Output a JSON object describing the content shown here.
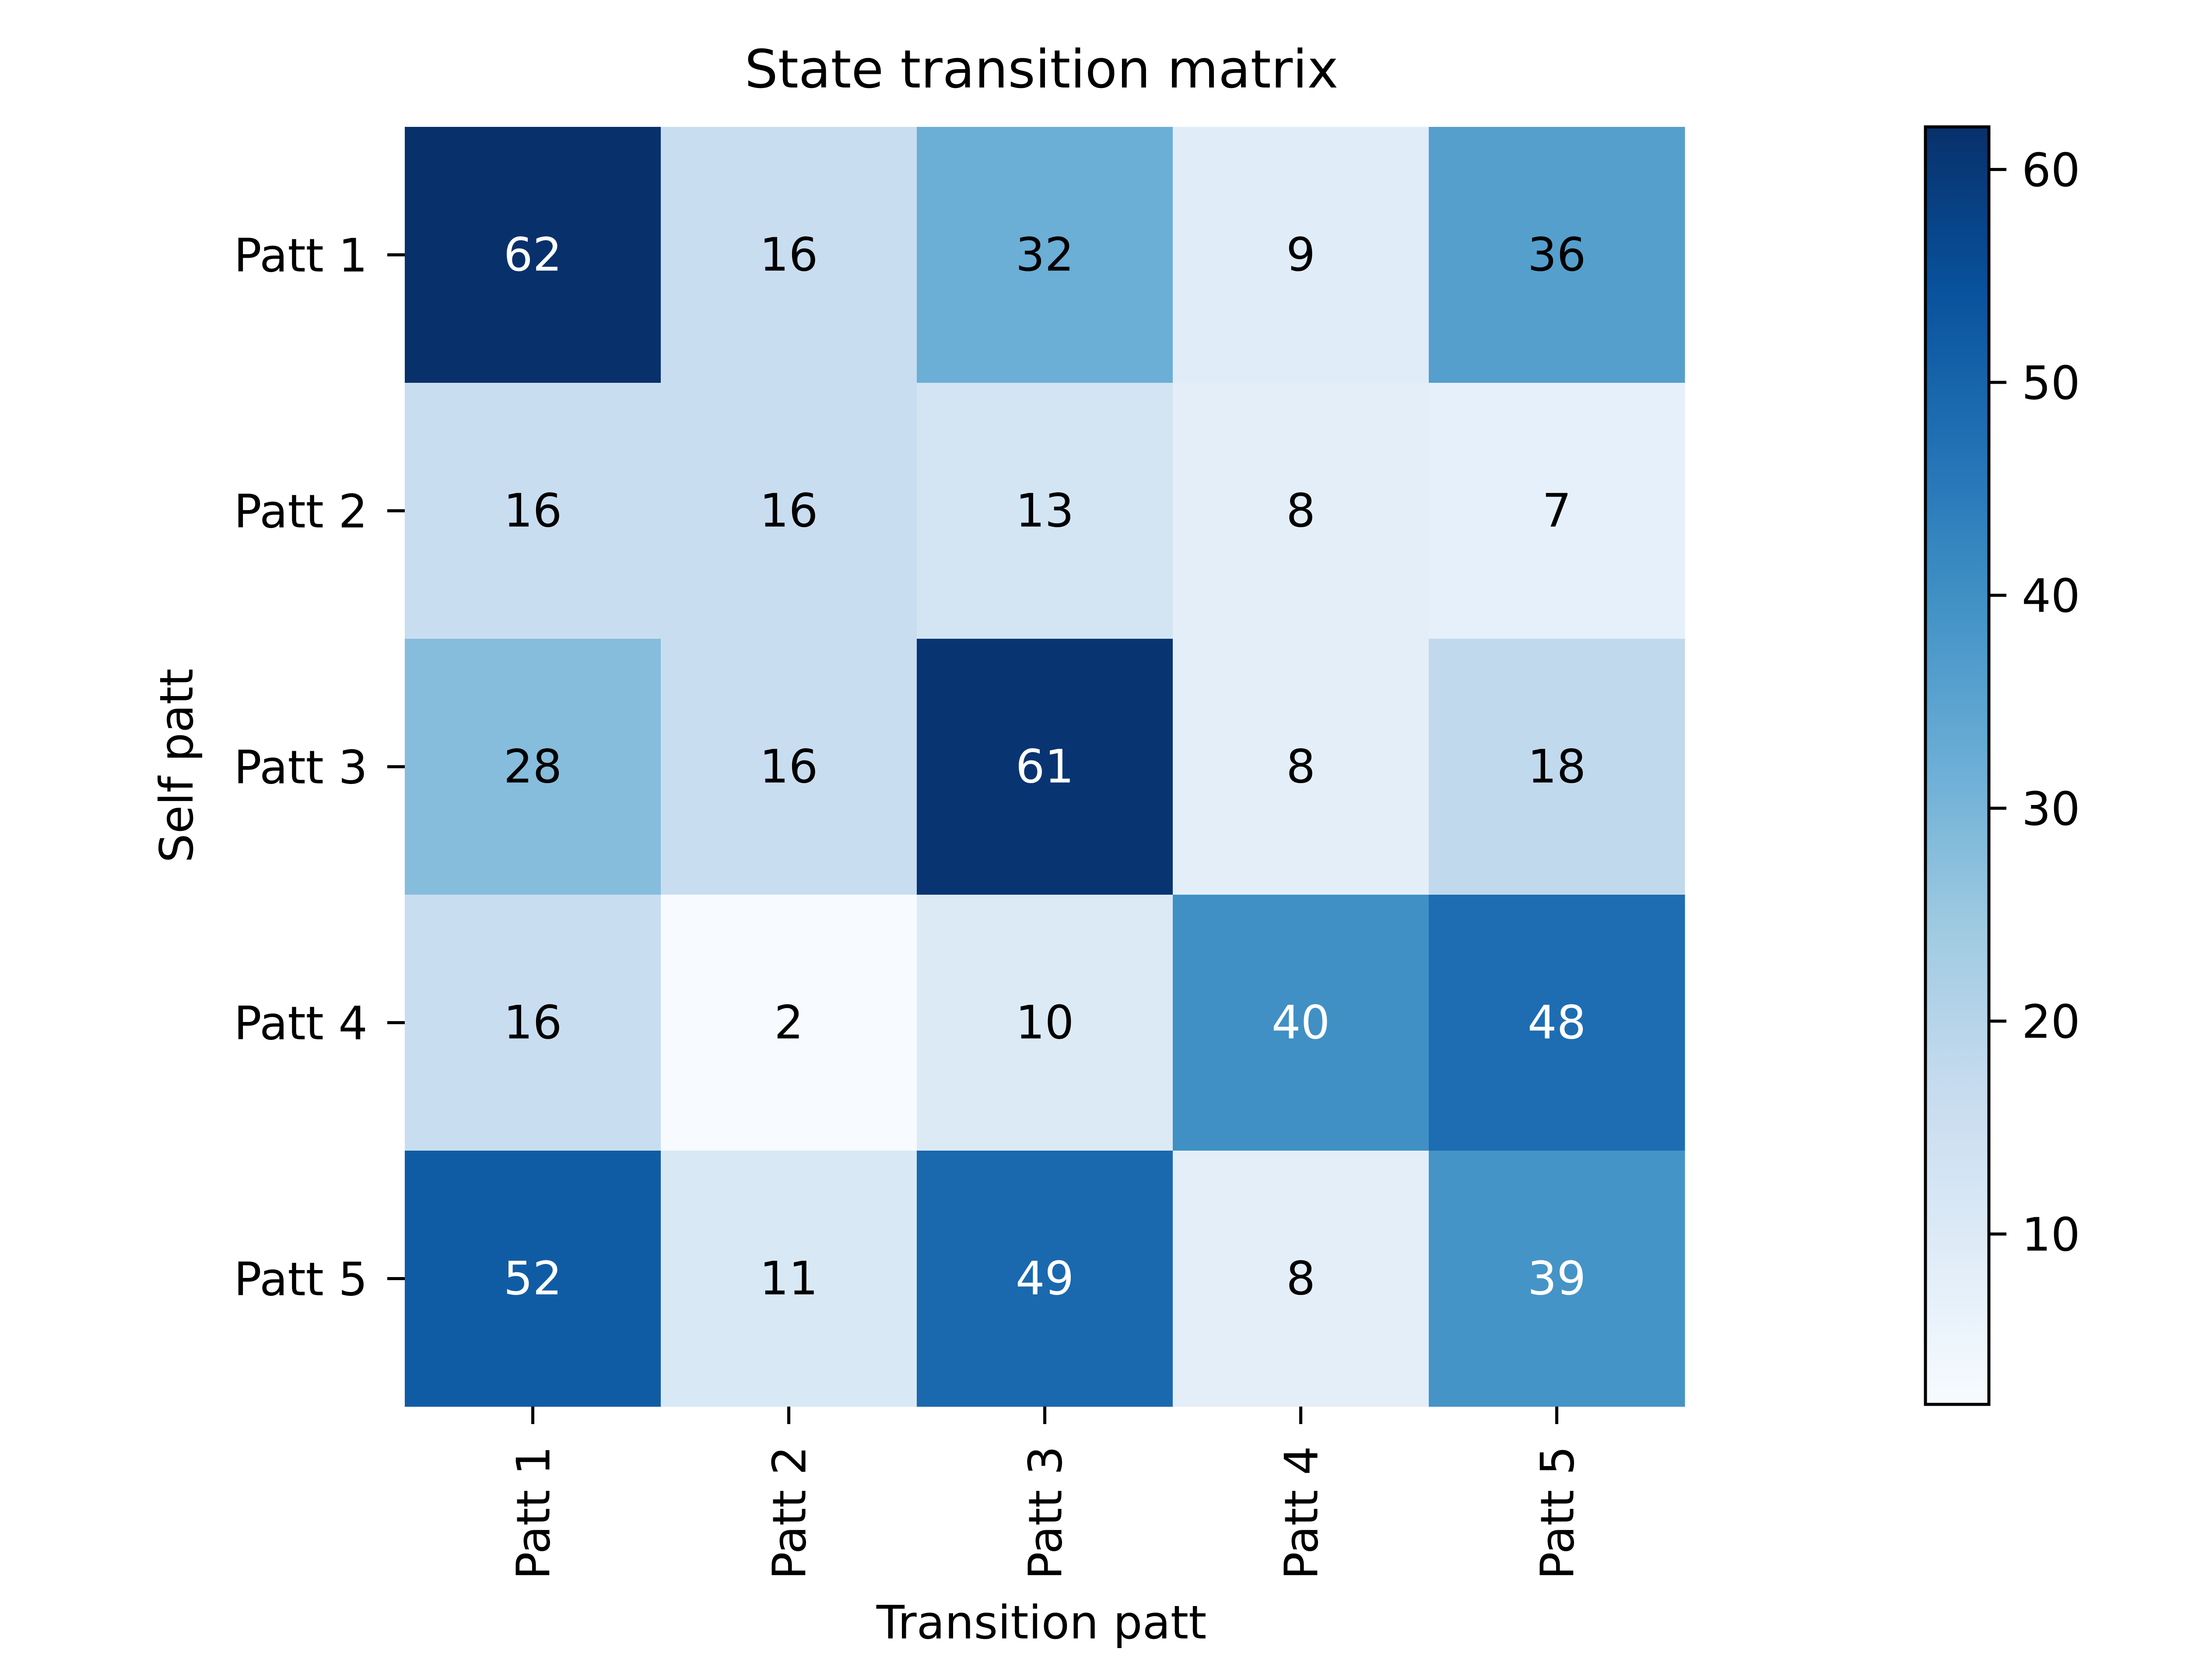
{
  "chart_data": {
    "type": "heatmap",
    "title": "State transition matrix",
    "xlabel": "Transition patt",
    "ylabel": "Self patt",
    "x_categories": [
      "Patt 1",
      "Patt 2",
      "Patt 3",
      "Patt 4",
      "Patt 5"
    ],
    "y_categories": [
      "Patt 1",
      "Patt 2",
      "Patt 3",
      "Patt 4",
      "Patt 5"
    ],
    "values": [
      [
        62,
        16,
        32,
        9,
        36
      ],
      [
        16,
        16,
        13,
        8,
        7
      ],
      [
        28,
        16,
        61,
        8,
        18
      ],
      [
        16,
        2,
        10,
        40,
        48
      ],
      [
        52,
        11,
        49,
        8,
        39
      ]
    ],
    "colormap": "Blues",
    "vmin": 2,
    "vmax": 62,
    "colorbar_ticks": [
      10,
      20,
      30,
      40,
      50,
      60
    ],
    "grid": false,
    "colorbar_position": "right"
  }
}
